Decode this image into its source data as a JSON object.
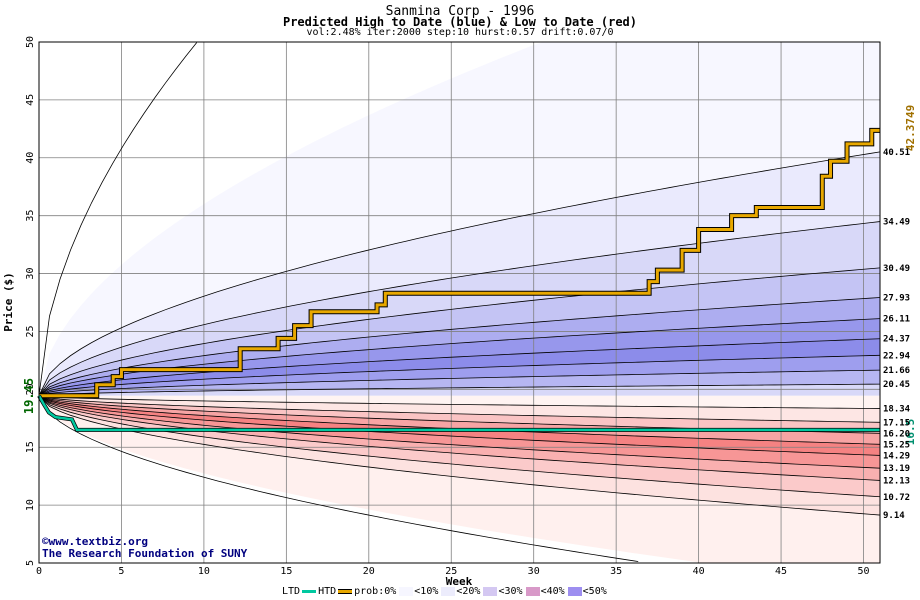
{
  "title": "Sanmina Corp - 1996",
  "subtitle": "Predicted High to Date (blue) &  Low to Date (red)",
  "params": "vol:2.48% iter:2000 step:10 hurst:0.57 drift:0.07/0",
  "credit_line1": "www.textbiz.org",
  "credit_line2": "The Research Foundation of SUNY",
  "legend": {
    "ltd": "LTD",
    "htd": "HTD",
    "prob": "prob:",
    "items": [
      "0%",
      "<10%",
      "<20%",
      "<30%",
      "<40%",
      "<50%"
    ]
  },
  "chart_data": {
    "type": "area",
    "xlabel": "Week",
    "ylabel": "Price ($)",
    "xlim": [
      0,
      51
    ],
    "ylim": [
      5,
      50
    ],
    "x_ticks": [
      0,
      5,
      10,
      15,
      20,
      25,
      30,
      35,
      40,
      45,
      50
    ],
    "y_ticks": [
      5,
      10,
      15,
      20,
      25,
      30,
      35,
      40,
      45,
      50
    ],
    "start_price": "19.45",
    "upper_bands_end": [
      40.51,
      34.49,
      30.49,
      27.93,
      26.11,
      24.37,
      22.94,
      21.66,
      20.45
    ],
    "lower_bands_end": [
      18.34,
      17.15,
      16.2,
      15.25,
      14.29,
      13.19,
      12.13,
      10.72,
      9.14
    ],
    "upper_band_labels": [
      "40.51",
      "34.49",
      "30.49",
      "27.93",
      "26.11",
      "24.37",
      "22.94",
      "21.66",
      "20.45"
    ],
    "lower_band_labels": [
      "18.34",
      "17.15",
      "16.20",
      "15.25",
      "14.29",
      "13.19",
      "12.13",
      "10.72",
      "9.14"
    ],
    "series": [
      {
        "name": "HTD",
        "x": [
          0,
          3.5,
          3.5,
          4.5,
          4.5,
          5,
          5,
          12.2,
          12.2,
          14.5,
          14.5,
          15.5,
          15.5,
          16.5,
          16.5,
          20.5,
          20.5,
          21,
          21,
          37,
          37,
          37.5,
          37.5,
          39,
          39,
          40,
          40,
          42,
          42,
          43.5,
          43.5,
          47.5,
          47.5,
          48,
          48,
          49,
          49,
          50.5,
          50.5,
          51
        ],
        "y": [
          19.45,
          19.45,
          20.4,
          20.4,
          21.1,
          21.1,
          21.7,
          21.7,
          23.5,
          23.5,
          24.4,
          24.4,
          25.5,
          25.5,
          26.7,
          26.7,
          27.3,
          27.3,
          28.3,
          28.3,
          29.3,
          29.3,
          30.3,
          30.3,
          32.0,
          32.0,
          33.8,
          33.8,
          35.0,
          35.0,
          35.7,
          35.7,
          38.4,
          38.4,
          39.7,
          39.7,
          41.2,
          41.2,
          42.37,
          42.37
        ],
        "final_label": "42.3749",
        "color": "#e8a800"
      },
      {
        "name": "LTD",
        "x": [
          0,
          0.3,
          0.6,
          1,
          2,
          2.3,
          3,
          5,
          10,
          20,
          30,
          40,
          51
        ],
        "y": [
          19.45,
          18.7,
          18.0,
          17.6,
          17.4,
          16.5,
          16.5,
          16.5,
          16.5,
          16.5,
          16.5,
          16.5,
          16.5
        ],
        "final_label": "16.5",
        "color": "#00c8a0"
      }
    ],
    "grid": true
  }
}
